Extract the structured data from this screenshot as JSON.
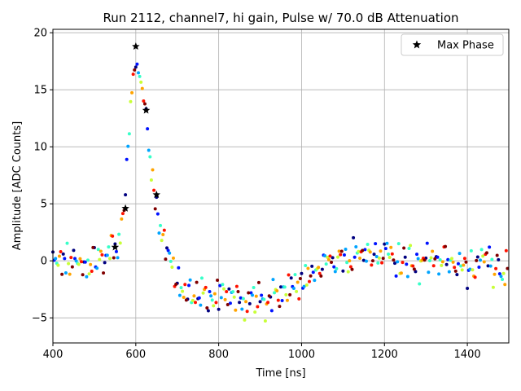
{
  "chart_data": {
    "type": "scatter",
    "title": "Run 2112, channel7, hi gain, Pulse w/ 70.0 dB Attenuation",
    "xlabel": "Time [ns]",
    "ylabel": "Amplitude [ADC Counts]",
    "xlim": [
      400,
      1500
    ],
    "ylim": [
      -7.2,
      20.3
    ],
    "xticks": [
      400,
      600,
      800,
      1000,
      1200,
      1400
    ],
    "yticks": [
      -5,
      0,
      5,
      10,
      15,
      20
    ],
    "grid": true,
    "legend_position": "top-right",
    "colormap": "jet",
    "series": [
      {
        "name": "Max Phase",
        "marker": "star",
        "color": "#000000",
        "x": [
          550,
          575,
          600,
          625,
          650
        ],
        "y": [
          1.2,
          4.6,
          18.8,
          13.2,
          5.8
        ]
      }
    ],
    "pulse_shape": {
      "description_points_x": [
        400,
        540,
        560,
        575,
        590,
        600,
        612,
        625,
        640,
        655,
        670,
        690,
        720,
        800,
        900,
        950,
        1000,
        1050,
        1100,
        1200,
        1300,
        1400,
        1500
      ],
      "description_points_y": [
        0,
        0.3,
        1.5,
        6,
        15,
        17.5,
        16,
        13,
        7,
        4,
        1.5,
        -1,
        -3,
        -3.2,
        -3.8,
        -3,
        -1.5,
        -0.2,
        0.2,
        0.5,
        -0.2,
        -0.4,
        -0.3
      ],
      "noise_amplitude": 1.1,
      "points_per_phase": 44,
      "phases": 8
    }
  }
}
